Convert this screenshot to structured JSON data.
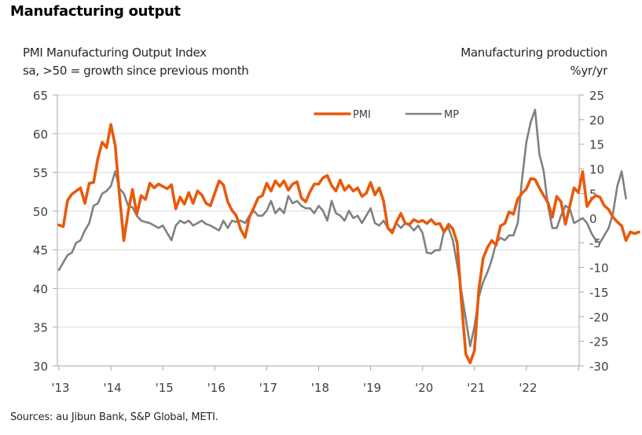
{
  "title": "Manufacturing output",
  "left_axis_title": [
    "PMI Manufacturing Output Index",
    "sa, >50 = growth since previous month"
  ],
  "right_axis_title": [
    "Manufacturing production",
    "%yr/yr"
  ],
  "source": "Sources: au Jibun Bank, S&P Global, METI.",
  "colors": {
    "pmi": "#E85A0C",
    "mp": "#808080",
    "grid": "#D9D9D9",
    "axis": "#A6A6A6"
  },
  "chart_data": {
    "type": "line",
    "title": "Manufacturing output",
    "xlabel": "",
    "ylabel": "PMI Manufacturing Output Index, sa, >50 = growth since previous month",
    "y2label": "Manufacturing production, %yr/yr",
    "x_tick_labels": [
      "'13",
      "'14",
      "'15",
      "'16",
      "'17",
      "'18",
      "'19",
      "'20",
      "'21",
      "'22"
    ],
    "x_start": "2013-01",
    "x_range_years": [
      2013,
      2023
    ],
    "ylim": [
      30,
      65
    ],
    "y_ticks": [
      30,
      35,
      40,
      45,
      50,
      55,
      60,
      65
    ],
    "y2lim": [
      -30,
      25
    ],
    "y2_ticks": [
      -30,
      -25,
      -20,
      -15,
      -10,
      -5,
      0,
      5,
      10,
      15,
      20,
      25
    ],
    "grid": true,
    "legend": {
      "position": "top-center",
      "entries": [
        "PMI",
        "MP"
      ]
    },
    "series": [
      {
        "name": "PMI",
        "axis": "left",
        "values": [
          48.2,
          48.0,
          51.4,
          52.2,
          52.6,
          53.0,
          51.0,
          53.6,
          53.7,
          56.8,
          58.9,
          58.2,
          61.2,
          58.5,
          52.0,
          46.2,
          49.9,
          52.8,
          49.6,
          52.0,
          51.5,
          53.6,
          53.0,
          53.5,
          53.2,
          52.9,
          53.4,
          50.3,
          51.8,
          50.9,
          52.4,
          51.0,
          52.6,
          52.1,
          51.0,
          50.7,
          52.3,
          53.9,
          53.4,
          51.2,
          50.1,
          49.4,
          47.6,
          46.6,
          49.2,
          50.4,
          51.7,
          52.0,
          53.6,
          52.6,
          53.9,
          53.2,
          53.9,
          52.7,
          53.5,
          53.8,
          51.7,
          51.2,
          52.5,
          53.5,
          53.5,
          54.3,
          54.6,
          53.3,
          52.6,
          54.0,
          52.7,
          53.3,
          52.6,
          53.0,
          51.9,
          52.3,
          53.7,
          52.1,
          53.0,
          51.3,
          47.8,
          47.2,
          48.6,
          49.7,
          48.4,
          48.3,
          48.9,
          48.6,
          48.8,
          48.4,
          48.9,
          48.3,
          48.4,
          47.3,
          48.3,
          47.7,
          45.9,
          38.2,
          31.5,
          30.4,
          32.0,
          39.8,
          43.9,
          45.3,
          46.2,
          45.6,
          48.1,
          48.4,
          49.9,
          49.6,
          51.6,
          52.3,
          52.9,
          54.2,
          54.1,
          53.0,
          52.0,
          51.1,
          49.2,
          51.9,
          51.2,
          48.3,
          50.6,
          53.0,
          52.4,
          55.1,
          50.6,
          51.5,
          52.0,
          51.8,
          50.7,
          50.2,
          49.2,
          48.6,
          48.1,
          46.2,
          47.3,
          47.1,
          47.3
        ]
      },
      {
        "name": "MP",
        "axis": "right",
        "values": [
          -10.5,
          -9.0,
          -7.5,
          -7.0,
          -5.0,
          -4.5,
          -2.5,
          -1.0,
          2.5,
          3.0,
          5.0,
          5.5,
          6.5,
          9.5,
          6.0,
          5.0,
          2.5,
          2.2,
          0.5,
          -0.5,
          -0.8,
          -1.0,
          -1.5,
          -2.0,
          -1.5,
          -3.0,
          -4.5,
          -1.5,
          -0.5,
          -1.0,
          -0.5,
          -1.5,
          -1.0,
          -0.5,
          -1.2,
          -1.5,
          -2.0,
          -2.5,
          -0.5,
          -2.0,
          -0.5,
          -0.8,
          -0.5,
          -1.0,
          0.5,
          1.5,
          0.5,
          0.5,
          1.5,
          3.5,
          1.0,
          2.0,
          1.0,
          4.5,
          3.0,
          3.5,
          2.5,
          2.0,
          2.0,
          1.0,
          2.5,
          1.5,
          -0.5,
          3.5,
          1.0,
          0.5,
          -0.5,
          1.5,
          0.0,
          0.5,
          -1.0,
          0.5,
          2.0,
          -1.0,
          -1.5,
          -0.5,
          -2.0,
          -2.5,
          -1.0,
          -2.0,
          -1.0,
          -1.5,
          -2.5,
          -1.5,
          -3.0,
          -7.0,
          -7.2,
          -6.5,
          -6.5,
          -2.5,
          -2.0,
          -4.5,
          -9.5,
          -15.0,
          -20.5,
          -26.0,
          -22.0,
          -16.0,
          -13.0,
          -11.0,
          -8.5,
          -5.0,
          -4.0,
          -4.5,
          -3.5,
          -3.5,
          -1.0,
          8.0,
          15.5,
          19.5,
          22.0,
          13.0,
          9.5,
          2.5,
          -2.0,
          -2.0,
          0.5,
          2.5,
          2.0,
          -1.0,
          -0.5,
          0.0,
          -1.0,
          -3.0,
          -4.5,
          -5.0,
          -3.5,
          -2.0,
          1.0,
          6.5,
          9.5,
          4.0
        ]
      }
    ]
  }
}
